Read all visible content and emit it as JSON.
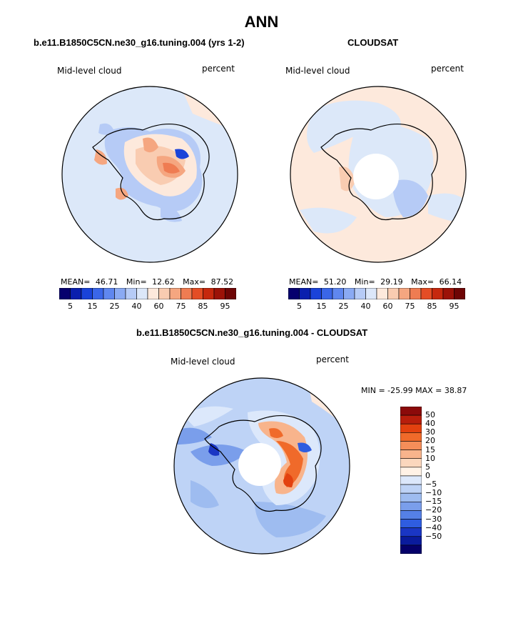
{
  "main_title": "ANN",
  "left_panel": {
    "title": "b.e11.B1850C5CN.ne30_g16.tuning.004 (yrs 1-2)",
    "variable": "Mid-level cloud",
    "units": "percent",
    "mean_label": "MEAN=",
    "mean_value": "46.71",
    "min_label": "Min=",
    "min_value": "12.62",
    "max_label": "Max=",
    "max_value": "87.52"
  },
  "right_panel": {
    "title": "CLOUDSAT",
    "variable": "Mid-level cloud",
    "units": "percent",
    "mean_label": "MEAN=",
    "mean_value": "51.20",
    "min_label": "Min=",
    "min_value": "29.19",
    "max_label": "Max=",
    "max_value": "66.14"
  },
  "diff_panel": {
    "title": "b.e11.B1850C5CN.ne30_g16.tuning.004 - CLOUDSAT",
    "variable": "Mid-level cloud",
    "units": "percent",
    "minmax_text": "MIN = -25.99 MAX =  38.87"
  },
  "top_colorbar": {
    "colors": [
      "#06006e",
      "#0a1fae",
      "#1a43d9",
      "#3a66e8",
      "#5f87ef",
      "#8aaaf3",
      "#b6cbf6",
      "#dce7f9",
      "#fde9dc",
      "#f9ccb1",
      "#f5a680",
      "#ef7c52",
      "#e44d25",
      "#c6280e",
      "#9c1208",
      "#6e0505"
    ],
    "tick_labels": [
      "5",
      "15",
      "25",
      "40",
      "60",
      "75",
      "85",
      "95"
    ]
  },
  "diff_colorbar": {
    "colors": [
      "#8b0a0a",
      "#b81e0c",
      "#e3410f",
      "#f06a2a",
      "#f58e59",
      "#f8b48c",
      "#fbd7bd",
      "#fff2e6",
      "#dce8fb",
      "#bed3f6",
      "#9ebcf0",
      "#7a9eeb",
      "#5580e6",
      "#2f5de0",
      "#1a36c4",
      "#0a1b9c",
      "#05006a"
    ],
    "tick_labels": [
      "50",
      "40",
      "30",
      "20",
      "15",
      "10",
      "5",
      "0",
      "−5",
      "−10",
      "−15",
      "−20",
      "−30",
      "−40",
      "−50"
    ]
  },
  "map_colors": {
    "left_background": "#dce8f9",
    "right_background": "#fde9dc",
    "diff_background": "#bed3f6"
  }
}
